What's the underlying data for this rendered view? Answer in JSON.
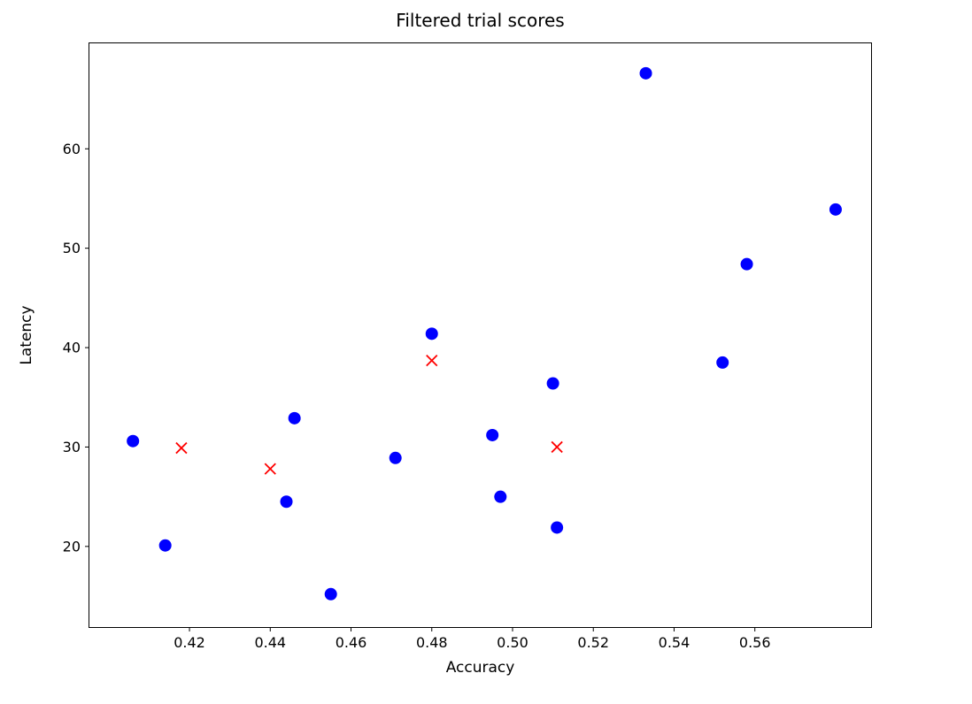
{
  "chart_data": {
    "type": "scatter",
    "title": "Filtered trial scores",
    "xlabel": "Accuracy",
    "ylabel": "Latency",
    "xlim": [
      0.395,
      0.589
    ],
    "ylim": [
      11.8,
      70.7
    ],
    "x_ticks": [
      0.42,
      0.44,
      0.46,
      0.48,
      0.5,
      0.52,
      0.54,
      0.56
    ],
    "x_tick_labels": [
      "0.42",
      "0.44",
      "0.46",
      "0.48",
      "0.50",
      "0.52",
      "0.54",
      "0.56"
    ],
    "y_ticks": [
      20,
      30,
      40,
      50,
      60
    ],
    "y_tick_labels": [
      "20",
      "30",
      "40",
      "50",
      "60"
    ],
    "grid": false,
    "legend": "none",
    "frame_color": "#000000",
    "background_color": "#ffffff",
    "series": [
      {
        "name": "blue-circle-points",
        "marker": "circle",
        "color": "#0000ff",
        "points": [
          [
            0.406,
            30.6
          ],
          [
            0.414,
            20.1
          ],
          [
            0.444,
            24.5
          ],
          [
            0.446,
            32.9
          ],
          [
            0.455,
            15.2
          ],
          [
            0.471,
            28.9
          ],
          [
            0.48,
            41.4
          ],
          [
            0.495,
            31.2
          ],
          [
            0.497,
            25.0
          ],
          [
            0.51,
            36.4
          ],
          [
            0.511,
            21.9
          ],
          [
            0.533,
            67.6
          ],
          [
            0.552,
            38.5
          ],
          [
            0.558,
            48.4
          ],
          [
            0.58,
            53.9
          ]
        ]
      },
      {
        "name": "red-x-points",
        "marker": "x",
        "color": "#ff0000",
        "points": [
          [
            0.418,
            29.9
          ],
          [
            0.44,
            27.8
          ],
          [
            0.48,
            38.7
          ],
          [
            0.511,
            30.0
          ]
        ]
      }
    ]
  }
}
